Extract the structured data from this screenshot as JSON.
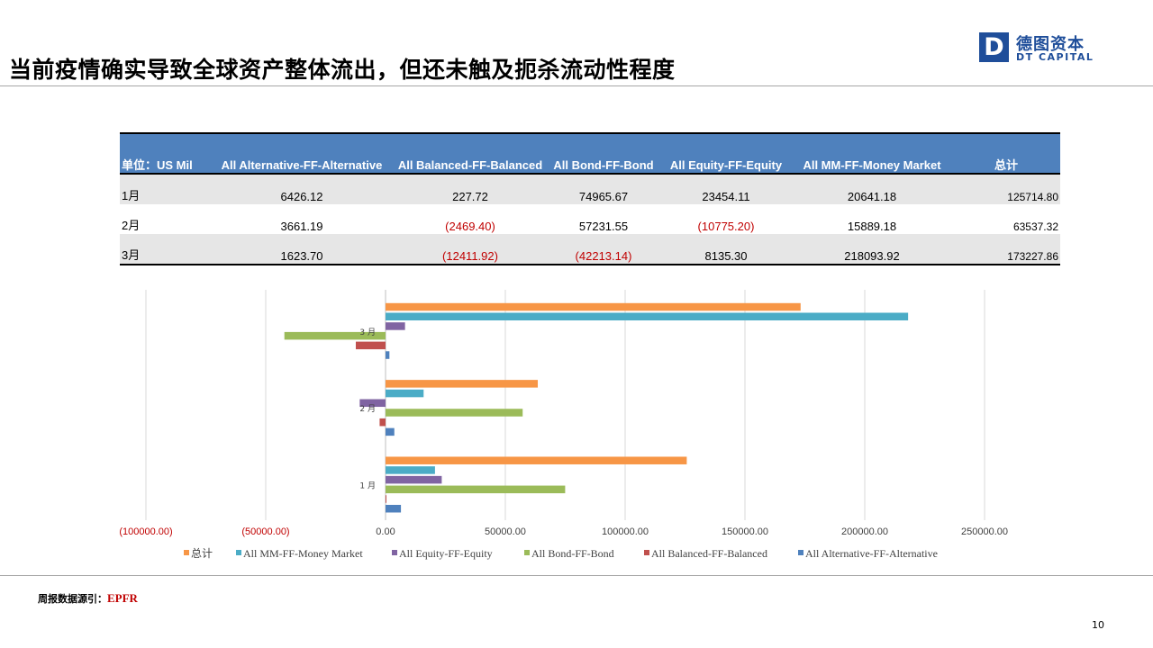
{
  "slide": {
    "title": "当前疫情确实导致全球资产整体流出，但还未触及扼杀流动性程度",
    "page_number": "10"
  },
  "logo": {
    "mark": "D",
    "name_cn": "德图资本",
    "name_en": "DT CAPITAL"
  },
  "table": {
    "columns": [
      "单位：US Mil",
      "All Alternative-FF-Alternative",
      "All Balanced-FF-Balanced",
      "All Bond-FF-Bond",
      "All Equity-FF-Equity",
      "All MM-FF-Money Market",
      "总计"
    ],
    "rows": [
      [
        "1月",
        "6426.12",
        "227.72",
        "74965.67",
        "23454.11",
        "20641.18",
        "125714.80"
      ],
      [
        "2月",
        "3661.19",
        "(2469.40)",
        "57231.55",
        "(10775.20)",
        "15889.18",
        "63537.32"
      ],
      [
        "3月",
        "1623.70",
        "(12411.92)",
        "(42213.14)",
        "8135.30",
        "218093.92",
        "173227.86"
      ]
    ]
  },
  "chart_data": {
    "type": "bar",
    "orientation": "horizontal",
    "categories": [
      "1月",
      "2月",
      "3月"
    ],
    "category_labels": [
      "1 月",
      "2 月",
      "3 月"
    ],
    "series": [
      {
        "name": "All Alternative-FF-Alternative",
        "color": "#4f81bd",
        "values": [
          6426.12,
          3661.19,
          1623.7
        ]
      },
      {
        "name": "All Balanced-FF-Balanced",
        "color": "#c0504d",
        "values": [
          227.72,
          -2469.4,
          -12411.92
        ]
      },
      {
        "name": "All Bond-FF-Bond",
        "color": "#9bbb59",
        "values": [
          74965.67,
          57231.55,
          -42213.14
        ]
      },
      {
        "name": "All Equity-FF-Equity",
        "color": "#8064a2",
        "values": [
          23454.11,
          -10775.2,
          8135.3
        ]
      },
      {
        "name": "All MM-FF-Money Market",
        "color": "#4bacc6",
        "values": [
          20641.18,
          15889.18,
          218093.92
        ]
      },
      {
        "name": "总计",
        "color": "#f79646",
        "values": [
          125714.8,
          63537.32,
          173227.86
        ]
      }
    ],
    "x_ticks": [
      -100000,
      -50000,
      0,
      50000,
      100000,
      150000,
      200000,
      250000
    ],
    "x_tick_labels": [
      "(100000.00)",
      "(50000.00)",
      "0.00",
      "50000.00",
      "100000.00",
      "150000.00",
      "200000.00",
      "250000.00"
    ],
    "negative_tick_color": "#c00000",
    "xlim": [
      -100000,
      250000
    ],
    "grid": "vertical",
    "legend_position": "bottom",
    "legend_order": [
      "总计",
      "All MM-FF-Money Market",
      "All Equity-FF-Equity",
      "All Bond-FF-Bond",
      "All Balanced-FF-Balanced",
      "All Alternative-FF-Alternative"
    ]
  },
  "footer": {
    "source_label": "周报数据源引：",
    "source_name": "EPFR"
  }
}
